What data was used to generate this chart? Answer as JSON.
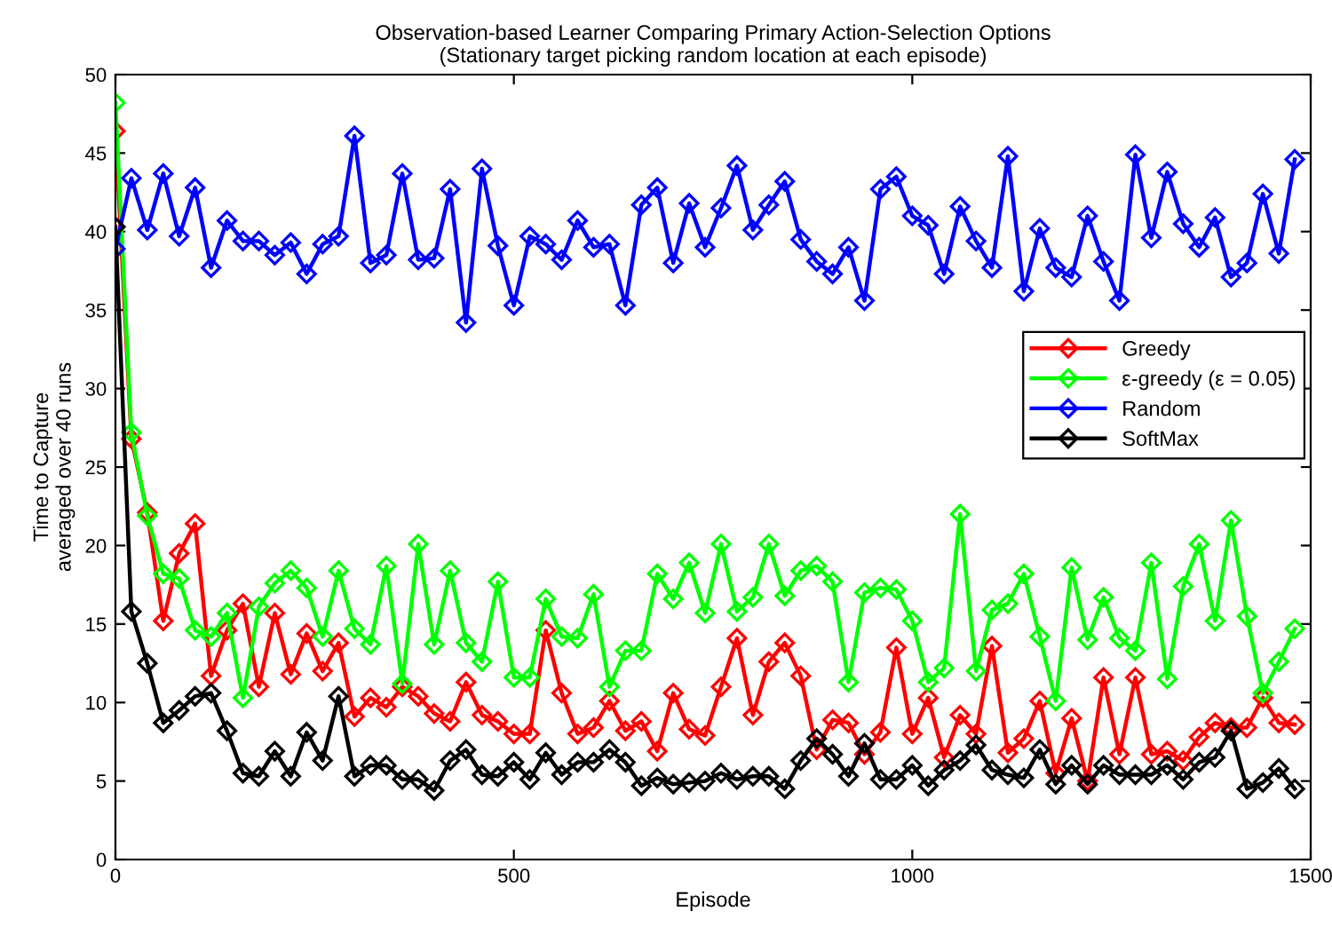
{
  "chart_data": {
    "type": "line",
    "title": "Observation-based Learner Comparing Primary Action-Selection Options",
    "subtitle": "(Stationary target picking random location at each episode)",
    "xlabel": "Episode",
    "ylabel": "Time to Capture\naveraged over 40 runs",
    "x": [
      0,
      20,
      40,
      60,
      80,
      100,
      120,
      140,
      160,
      180,
      200,
      220,
      240,
      260,
      280,
      300,
      320,
      340,
      360,
      380,
      400,
      420,
      440,
      460,
      480,
      500,
      520,
      540,
      560,
      580,
      600,
      620,
      640,
      660,
      680,
      700,
      720,
      740,
      760,
      780,
      800,
      820,
      840,
      860,
      880,
      900,
      920,
      940,
      960,
      980,
      1000,
      1020,
      1040,
      1060,
      1080,
      1100,
      1120,
      1140,
      1160,
      1180,
      1200,
      1220,
      1240,
      1260,
      1280,
      1300,
      1320,
      1340,
      1360,
      1380,
      1400,
      1420,
      1440,
      1460,
      1480
    ],
    "series": [
      {
        "name": "Greedy",
        "color": "#ff0000",
        "values": [
          46.4,
          26.8,
          22.1,
          15.2,
          19.5,
          21.4,
          11.7,
          14.6,
          16.3,
          11.0,
          15.7,
          11.8,
          14.4,
          12.0,
          13.8,
          9.1,
          10.3,
          9.7,
          11.0,
          10.4,
          9.3,
          8.8,
          11.3,
          9.2,
          8.8,
          8.0,
          8.0,
          14.6,
          10.6,
          8.0,
          8.4,
          10.1,
          8.2,
          8.8,
          6.9,
          10.6,
          8.3,
          7.9,
          11.0,
          14.1,
          9.2,
          12.6,
          13.8,
          11.7,
          7.0,
          8.9,
          8.7,
          6.7,
          8.1,
          13.5,
          8.0,
          10.3,
          6.5,
          9.2,
          8.0,
          13.6,
          6.8,
          7.7,
          10.1,
          5.5,
          9.0,
          5.0,
          11.6,
          6.7,
          11.6,
          6.7,
          6.9,
          6.3,
          7.8,
          8.7,
          8.4,
          8.4,
          10.3,
          8.7,
          8.6
        ]
      },
      {
        "name": "ε-greedy (ε = 0.05)",
        "color": "#00ff00",
        "values": [
          48.2,
          27.2,
          21.9,
          18.2,
          17.9,
          14.6,
          14.2,
          15.7,
          10.3,
          16.1,
          17.6,
          18.4,
          17.3,
          14.2,
          18.4,
          14.7,
          13.7,
          18.7,
          11.2,
          20.1,
          13.7,
          18.4,
          13.8,
          12.6,
          17.7,
          11.6,
          11.6,
          16.6,
          14.2,
          14.1,
          16.9,
          11.0,
          13.3,
          13.3,
          18.2,
          16.6,
          18.9,
          15.7,
          20.1,
          15.8,
          16.7,
          20.1,
          16.8,
          18.4,
          18.7,
          17.7,
          11.3,
          17.0,
          17.3,
          17.2,
          15.2,
          11.3,
          12.2,
          22.0,
          12.0,
          15.9,
          16.3,
          18.2,
          14.2,
          10.1,
          18.6,
          14.0,
          16.7,
          14.1,
          13.3,
          18.9,
          11.5,
          17.4,
          20.1,
          15.2,
          21.6,
          15.5,
          10.6,
          12.6,
          14.7
        ]
      },
      {
        "name": "Random",
        "color": "#0000ff",
        "values": [
          38.9,
          43.4,
          40.1,
          43.7,
          39.7,
          42.8,
          37.7,
          40.7,
          39.4,
          39.4,
          38.5,
          39.3,
          37.3,
          39.2,
          39.7,
          46.1,
          38.0,
          38.5,
          43.7,
          38.2,
          38.3,
          42.7,
          34.2,
          44.0,
          39.1,
          35.3,
          39.7,
          39.2,
          38.2,
          40.7,
          39.0,
          39.2,
          35.3,
          41.7,
          42.8,
          38.0,
          41.8,
          39.0,
          41.5,
          44.2,
          40.1,
          41.7,
          43.2,
          39.5,
          38.1,
          37.3,
          39.0,
          35.6,
          42.7,
          43.5,
          41.0,
          40.4,
          37.3,
          41.6,
          39.4,
          37.7,
          44.8,
          36.2,
          40.2,
          37.7,
          37.1,
          41.0,
          38.1,
          35.6,
          44.9,
          39.6,
          43.8,
          40.5,
          39.0,
          40.9,
          37.1,
          38.0,
          42.4,
          38.6,
          44.6
        ]
      },
      {
        "name": "SoftMax",
        "color": "#000000",
        "values": [
          40.3,
          15.8,
          12.5,
          8.7,
          9.5,
          10.4,
          10.6,
          8.2,
          5.5,
          5.3,
          6.9,
          5.3,
          8.1,
          6.3,
          10.4,
          5.3,
          6.0,
          6.0,
          5.1,
          5.1,
          4.4,
          6.3,
          7.0,
          5.4,
          5.3,
          6.2,
          5.1,
          6.8,
          5.4,
          6.2,
          6.2,
          7.0,
          6.2,
          4.7,
          5.2,
          4.8,
          4.9,
          5.0,
          5.5,
          5.1,
          5.3,
          5.3,
          4.5,
          6.3,
          7.7,
          6.7,
          5.3,
          7.4,
          5.1,
          5.1,
          6.0,
          4.7,
          5.7,
          6.3,
          7.3,
          5.7,
          5.4,
          5.2,
          7.0,
          4.8,
          6.0,
          4.8,
          6.0,
          5.4,
          5.4,
          5.4,
          6.0,
          5.1,
          6.2,
          6.5,
          8.2,
          4.5,
          4.9,
          5.8,
          4.5
        ]
      }
    ],
    "xlim": [
      0,
      1500
    ],
    "xticks": [
      0,
      500,
      1000,
      1500
    ],
    "ylim": [
      0,
      50
    ],
    "yticks": [
      0,
      5,
      10,
      15,
      20,
      25,
      30,
      35,
      40,
      45,
      50
    ],
    "grid": false,
    "legend": "right",
    "marker": "diamond",
    "line_style": "solid"
  }
}
